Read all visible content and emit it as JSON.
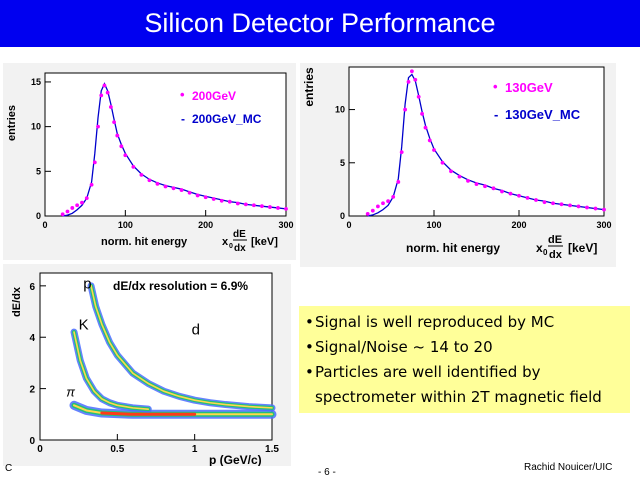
{
  "slide": {
    "title": "Silicon Detector Performance",
    "colors": {
      "title_bg": "#0000f0",
      "title_text": "#ffffff",
      "note_bg": "#ffff99",
      "data_marker": "#ff00ff",
      "mc_line": "#0000cc"
    },
    "bullets": [
      "Signal is well reproduced by MC",
      "Signal/Noise ~ 14 to 20",
      "Particles are well identified by",
      "spectrometer within 2T magnetic field"
    ],
    "footer": {
      "left": "C",
      "page": "- 6 -",
      "author": "Rachid Nouicer/UIC"
    }
  },
  "chart_data": [
    {
      "type": "line",
      "ylabel": "entries",
      "xlabel": "norm. hit energy",
      "xlabel_unit": "[keV]",
      "xlabel_formula": {
        "prefix": "x",
        "sub": "0",
        "num": "dE",
        "den": "dx"
      },
      "xlim": [
        0,
        300
      ],
      "ylim": [
        0,
        16
      ],
      "xticks": [
        "0",
        "100",
        "200",
        "300"
      ],
      "yticks": [
        "0",
        "5",
        "10",
        "15"
      ],
      "legend": [
        {
          "marker": "•",
          "label": "200GeV"
        },
        {
          "marker": "-",
          "label": "200GeV_MC"
        }
      ],
      "x": [
        22,
        28,
        34,
        40,
        46,
        52,
        58,
        62,
        66,
        70,
        74,
        78,
        82,
        86,
        90,
        95,
        100,
        110,
        120,
        130,
        140,
        150,
        160,
        170,
        180,
        190,
        200,
        210,
        220,
        230,
        240,
        250,
        260,
        270,
        280,
        290,
        300
      ],
      "series": [
        {
          "name": "200GeV",
          "values": [
            0.2,
            0.5,
            0.9,
            1.2,
            1.5,
            2.0,
            3.5,
            6.0,
            10.0,
            13.5,
            14.6,
            13.8,
            12.2,
            10.5,
            9.0,
            7.8,
            6.8,
            5.5,
            4.6,
            4.0,
            3.6,
            3.3,
            3.1,
            2.9,
            2.6,
            2.3,
            2.1,
            1.9,
            1.7,
            1.6,
            1.4,
            1.3,
            1.2,
            1.1,
            1.0,
            0.9,
            0.8
          ]
        },
        {
          "name": "200GeV_MC",
          "values": [
            0,
            0.1,
            0.3,
            0.7,
            1.2,
            2.0,
            3.8,
            7.0,
            11.0,
            14.0,
            14.8,
            14.0,
            12.5,
            10.8,
            9.2,
            8.0,
            7.0,
            5.6,
            4.7,
            4.1,
            3.7,
            3.4,
            3.2,
            3.0,
            2.7,
            2.4,
            2.2,
            2.0,
            1.8,
            1.6,
            1.5,
            1.3,
            1.2,
            1.1,
            1.0,
            0.9,
            0.8
          ]
        }
      ]
    },
    {
      "type": "line",
      "ylabel": "entries",
      "xlabel": "norm. hit energy",
      "xlabel_unit": "[keV]",
      "xlabel_formula": {
        "prefix": "x",
        "sub": "0",
        "num": "dE",
        "den": "dx"
      },
      "xlim": [
        0,
        300
      ],
      "ylim": [
        0,
        14
      ],
      "xticks": [
        "0",
        "100",
        "200",
        "300"
      ],
      "yticks": [
        "0",
        "5",
        "10"
      ],
      "legend": [
        {
          "marker": "•",
          "label": "130GeV"
        },
        {
          "marker": "-",
          "label": "130GeV_MC"
        }
      ],
      "x": [
        22,
        28,
        34,
        40,
        46,
        52,
        58,
        62,
        66,
        70,
        74,
        78,
        82,
        86,
        90,
        95,
        100,
        110,
        120,
        130,
        140,
        150,
        160,
        170,
        180,
        190,
        200,
        210,
        220,
        230,
        240,
        250,
        260,
        270,
        280,
        290,
        300
      ],
      "series": [
        {
          "name": "130GeV",
          "values": [
            0.2,
            0.5,
            0.9,
            1.2,
            1.4,
            1.8,
            3.2,
            6.0,
            10.0,
            12.6,
            13.6,
            12.8,
            11.2,
            9.6,
            8.3,
            7.1,
            6.2,
            5.0,
            4.2,
            3.7,
            3.3,
            3.0,
            2.8,
            2.6,
            2.3,
            2.1,
            1.9,
            1.7,
            1.5,
            1.3,
            1.2,
            1.1,
            1.0,
            0.9,
            0.8,
            0.7,
            0.6
          ]
        },
        {
          "name": "130GeV_MC",
          "values": [
            0,
            0.1,
            0.3,
            0.6,
            1.0,
            1.8,
            3.5,
            6.5,
            10.5,
            13.0,
            13.3,
            12.7,
            11.3,
            9.8,
            8.5,
            7.3,
            6.3,
            5.1,
            4.3,
            3.8,
            3.4,
            3.1,
            2.9,
            2.6,
            2.4,
            2.1,
            1.9,
            1.7,
            1.5,
            1.4,
            1.2,
            1.1,
            1.0,
            0.9,
            0.8,
            0.7,
            0.6
          ]
        }
      ]
    },
    {
      "type": "heatmap",
      "title": "dE/dx resolution = 6.9%",
      "xlabel": "p (GeV/c)",
      "ylabel": "dE/dx",
      "xlim": [
        0,
        1.5
      ],
      "ylim": [
        0,
        6.5
      ],
      "xticks": [
        "0",
        "0.5",
        "1",
        "1.5"
      ],
      "yticks": [
        "0",
        "2",
        "4",
        "6"
      ],
      "band_labels": [
        {
          "text": "p",
          "p": 0.28,
          "dedx": 5.9
        },
        {
          "text": "K",
          "p": 0.25,
          "dedx": 4.3
        },
        {
          "text": "d",
          "p": 0.98,
          "dedx": 4.1
        },
        {
          "text": "π",
          "p": 0.17,
          "dedx": 1.7
        }
      ],
      "bands": [
        {
          "name": "pi",
          "p": [
            0.22,
            0.3,
            0.4,
            0.6,
            0.8,
            1.0,
            1.2,
            1.5
          ],
          "dedx": [
            1.35,
            1.15,
            1.05,
            1.0,
            1.0,
            1.0,
            1.0,
            1.0
          ]
        },
        {
          "name": "K",
          "p": [
            0.22,
            0.26,
            0.3,
            0.35,
            0.4,
            0.45,
            0.5,
            0.55,
            0.6,
            0.7
          ],
          "dedx": [
            4.2,
            3.1,
            2.4,
            1.9,
            1.6,
            1.45,
            1.35,
            1.3,
            1.25,
            1.2
          ]
        },
        {
          "name": "p",
          "p": [
            0.33,
            0.36,
            0.4,
            0.45,
            0.5,
            0.6,
            0.7,
            0.8,
            0.9,
            1.0,
            1.1,
            1.2,
            1.35,
            1.5
          ],
          "dedx": [
            6.0,
            5.2,
            4.5,
            3.8,
            3.3,
            2.6,
            2.2,
            1.9,
            1.7,
            1.55,
            1.45,
            1.38,
            1.3,
            1.25
          ]
        }
      ]
    }
  ]
}
